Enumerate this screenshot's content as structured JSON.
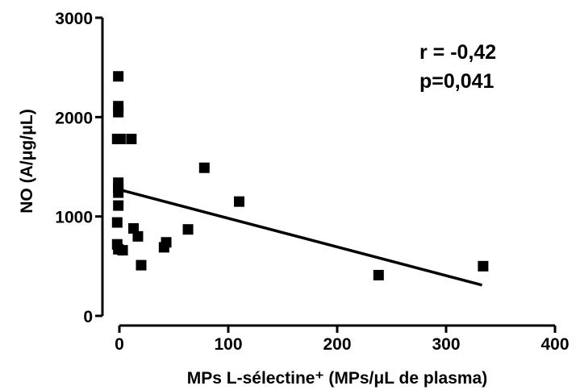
{
  "chart_data": {
    "type": "scatter",
    "xlabel": "MPs L-sélectine⁺ (MPs/μL de plasma)",
    "ylabel": "NO (A/μg/μL)",
    "xlim": [
      0,
      400
    ],
    "ylim": [
      0,
      3000
    ],
    "xticks": [
      "0",
      "100",
      "200",
      "300",
      "400"
    ],
    "yticks": [
      "0",
      "1000",
      "2000",
      "3000"
    ],
    "grid": false,
    "annotations": [
      "r = -0,42",
      "p=0,041"
    ],
    "points": [
      {
        "x": -1,
        "y": 2410
      },
      {
        "x": -1,
        "y": 2110
      },
      {
        "x": -1,
        "y": 2050
      },
      {
        "x": -2,
        "y": 1780
      },
      {
        "x": 1,
        "y": 1780
      },
      {
        "x": 11,
        "y": 1780
      },
      {
        "x": -1,
        "y": 1340
      },
      {
        "x": -1,
        "y": 1290
      },
      {
        "x": -1,
        "y": 1240
      },
      {
        "x": -1,
        "y": 1110
      },
      {
        "x": -2,
        "y": 940
      },
      {
        "x": -2,
        "y": 720
      },
      {
        "x": -1,
        "y": 670
      },
      {
        "x": 3,
        "y": 660
      },
      {
        "x": 13,
        "y": 880
      },
      {
        "x": 17,
        "y": 800
      },
      {
        "x": 20,
        "y": 510
      },
      {
        "x": 41,
        "y": 690
      },
      {
        "x": 43,
        "y": 740
      },
      {
        "x": 63,
        "y": 870
      },
      {
        "x": 78,
        "y": 1490
      },
      {
        "x": 110,
        "y": 1150
      },
      {
        "x": 238,
        "y": 410
      },
      {
        "x": 334,
        "y": 500
      }
    ],
    "regression": {
      "x": [
        0,
        333
      ],
      "y": [
        1270,
        310
      ]
    }
  }
}
